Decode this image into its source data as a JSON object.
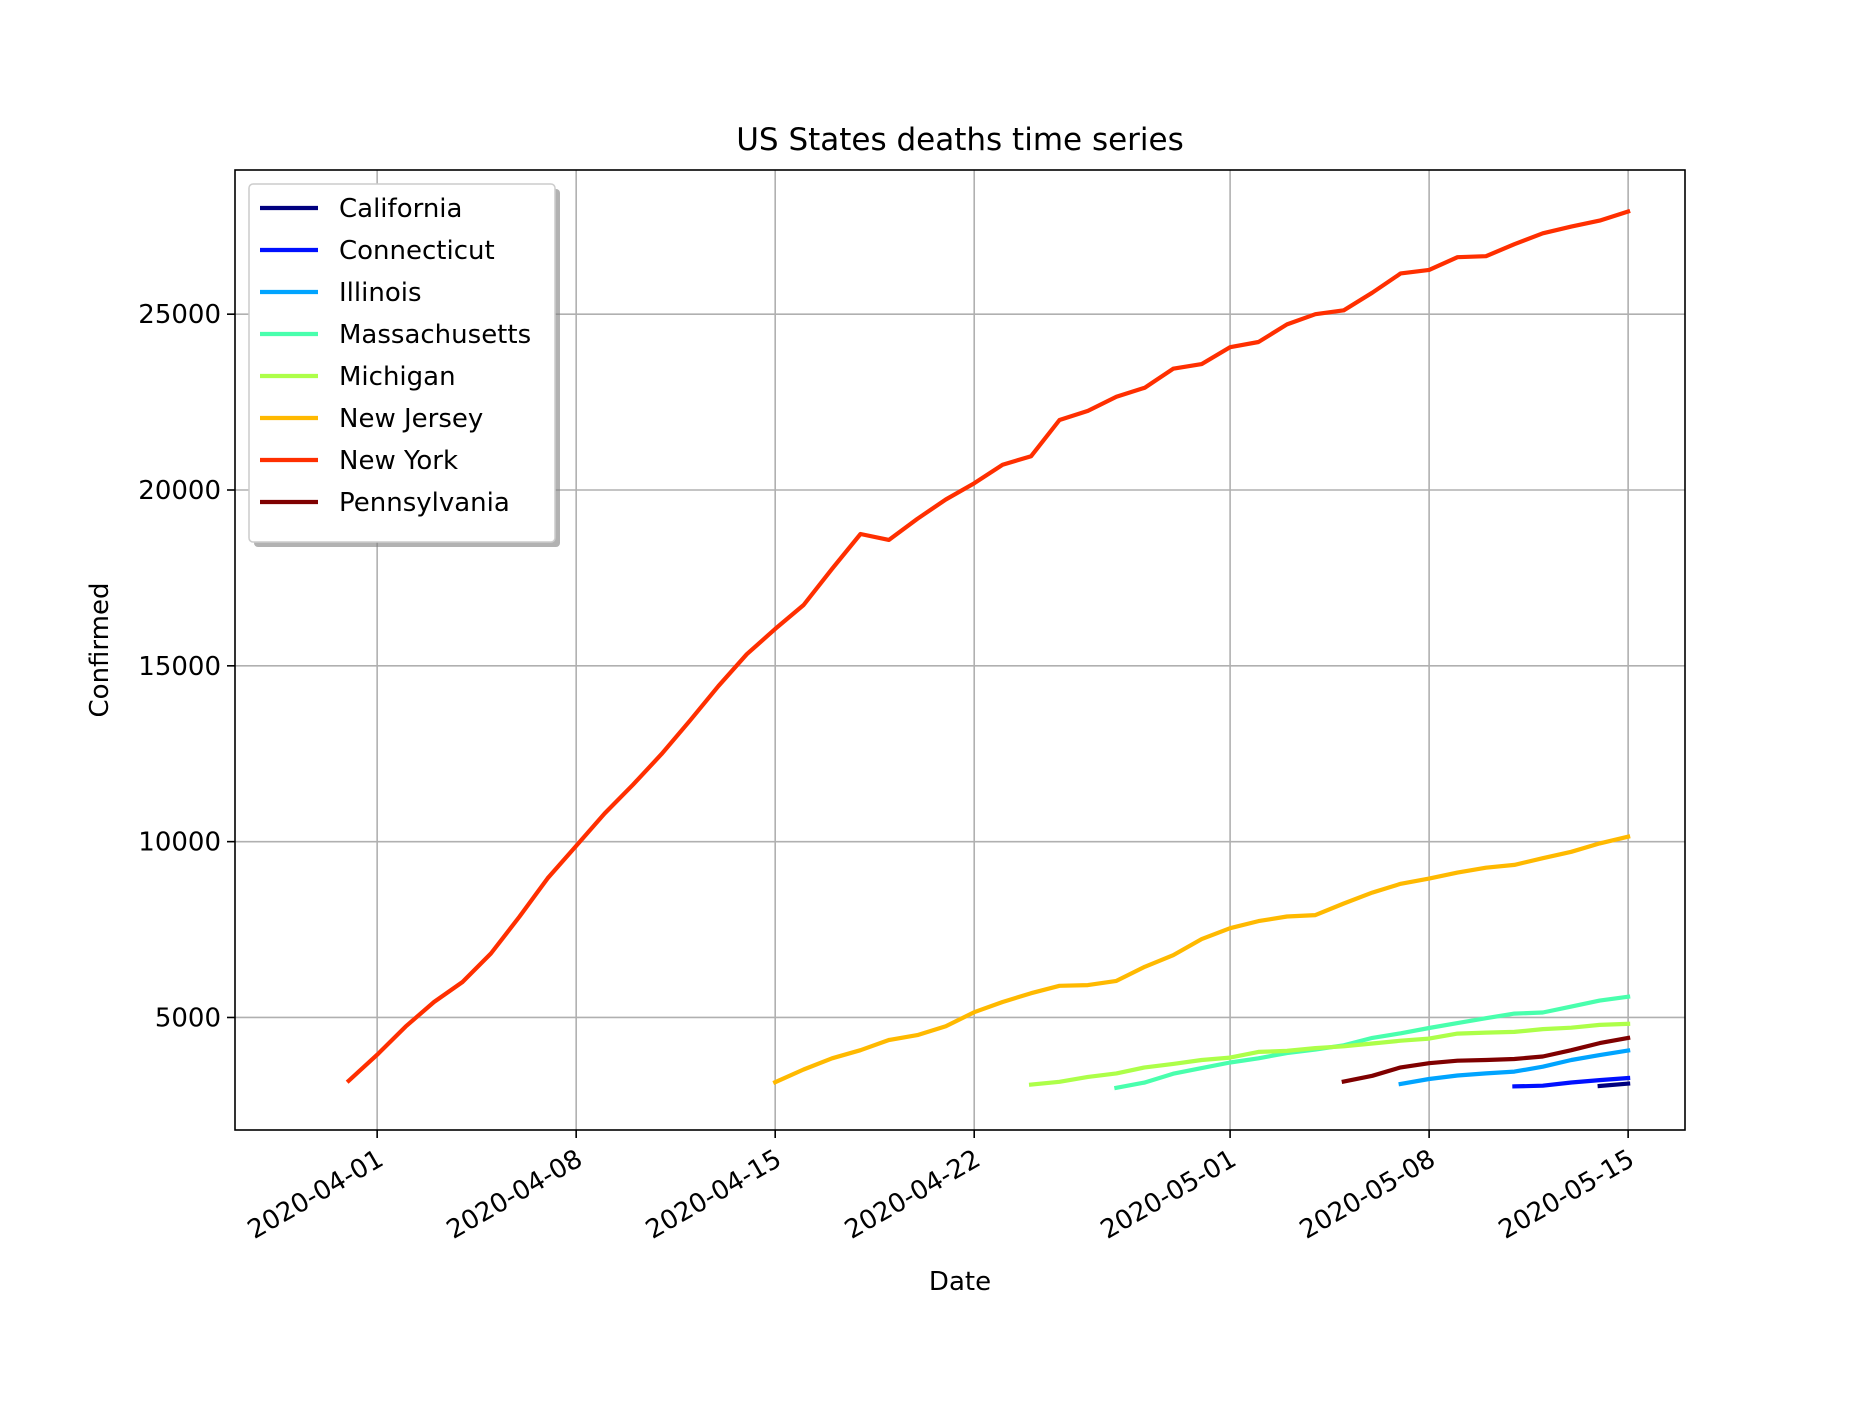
{
  "chart_data": {
    "type": "line",
    "title": "US States deaths time series",
    "xlabel": "Date",
    "ylabel": "Confirmed",
    "xlim": [
      "2020-03-27",
      "2020-05-17"
    ],
    "ylim": [
      1800,
      29100
    ],
    "grid": true,
    "legend_position": "top-left",
    "x_ticks": [
      "2020-04-01",
      "2020-04-08",
      "2020-04-15",
      "2020-04-22",
      "2020-05-01",
      "2020-05-08",
      "2020-05-15"
    ],
    "y_ticks": [
      5000,
      10000,
      15000,
      20000,
      25000
    ],
    "series": [
      {
        "name": "California",
        "color": "#00007f",
        "x": [
          "2020-05-14",
          "2020-05-15"
        ],
        "y": [
          3050,
          3120
        ]
      },
      {
        "name": "Connecticut",
        "color": "#0010ff",
        "x": [
          "2020-05-11",
          "2020-05-12",
          "2020-05-13",
          "2020-05-14",
          "2020-05-15"
        ],
        "y": [
          3040,
          3060,
          3150,
          3220,
          3280
        ]
      },
      {
        "name": "Illinois",
        "color": "#00a4ff",
        "x": [
          "2020-05-07",
          "2020-05-08",
          "2020-05-09",
          "2020-05-10",
          "2020-05-11",
          "2020-05-12",
          "2020-05-13",
          "2020-05-14",
          "2020-05-15"
        ],
        "y": [
          3110,
          3250,
          3350,
          3410,
          3460,
          3600,
          3790,
          3930,
          4060
        ]
      },
      {
        "name": "Massachusetts",
        "color": "#49ffad",
        "x": [
          "2020-04-27",
          "2020-04-28",
          "2020-04-29",
          "2020-04-30",
          "2020-05-01",
          "2020-05-02",
          "2020-05-03",
          "2020-05-04",
          "2020-05-05",
          "2020-05-06",
          "2020-05-07",
          "2020-05-08",
          "2020-05-09",
          "2020-05-10",
          "2020-05-11",
          "2020-05-12",
          "2020-05-13",
          "2020-05-14",
          "2020-05-15"
        ],
        "y": [
          3000,
          3150,
          3400,
          3560,
          3720,
          3840,
          3990,
          4090,
          4210,
          4420,
          4550,
          4700,
          4840,
          4980,
          5110,
          5140,
          5310,
          5480,
          5590
        ]
      },
      {
        "name": "Michigan",
        "color": "#adff49",
        "x": [
          "2020-04-24",
          "2020-04-25",
          "2020-04-26",
          "2020-04-27",
          "2020-04-28",
          "2020-04-29",
          "2020-04-30",
          "2020-05-01",
          "2020-05-02",
          "2020-05-03",
          "2020-05-04",
          "2020-05-05",
          "2020-05-06",
          "2020-05-07",
          "2020-05-08",
          "2020-05-09",
          "2020-05-10",
          "2020-05-11",
          "2020-05-12",
          "2020-05-13",
          "2020-05-14",
          "2020-05-15"
        ],
        "y": [
          3090,
          3170,
          3310,
          3410,
          3580,
          3680,
          3790,
          3860,
          4020,
          4050,
          4130,
          4180,
          4260,
          4340,
          4400,
          4540,
          4570,
          4590,
          4670,
          4710,
          4790,
          4820
        ]
      },
      {
        "name": "New Jersey",
        "color": "#ffb900",
        "x": [
          "2020-04-15",
          "2020-04-16",
          "2020-04-17",
          "2020-04-18",
          "2020-04-19",
          "2020-04-20",
          "2020-04-21",
          "2020-04-22",
          "2020-04-23",
          "2020-04-24",
          "2020-04-25",
          "2020-04-26",
          "2020-04-27",
          "2020-04-28",
          "2020-04-29",
          "2020-04-30",
          "2020-05-01",
          "2020-05-02",
          "2020-05-03",
          "2020-05-04",
          "2020-05-05",
          "2020-05-06",
          "2020-05-07",
          "2020-05-08",
          "2020-05-09",
          "2020-05-10",
          "2020-05-11",
          "2020-05-12",
          "2020-05-13",
          "2020-05-14",
          "2020-05-15"
        ],
        "y": [
          3160,
          3520,
          3840,
          4070,
          4360,
          4500,
          4750,
          5150,
          5440,
          5690,
          5900,
          5920,
          6040,
          6440,
          6770,
          7230,
          7540,
          7740,
          7870,
          7910,
          8240,
          8550,
          8800,
          8950,
          9120,
          9260,
          9340,
          9530,
          9710,
          9950,
          10140
        ]
      },
      {
        "name": "New York",
        "color": "#ff2f00",
        "x": [
          "2020-03-31",
          "2020-04-01",
          "2020-04-02",
          "2020-04-03",
          "2020-04-04",
          "2020-04-05",
          "2020-04-06",
          "2020-04-07",
          "2020-04-08",
          "2020-04-09",
          "2020-04-10",
          "2020-04-11",
          "2020-04-12",
          "2020-04-13",
          "2020-04-14",
          "2020-04-15",
          "2020-04-16",
          "2020-04-17",
          "2020-04-18",
          "2020-04-19",
          "2020-04-20",
          "2020-04-21",
          "2020-04-22",
          "2020-04-23",
          "2020-04-24",
          "2020-04-25",
          "2020-04-26",
          "2020-04-27",
          "2020-04-28",
          "2020-04-29",
          "2020-04-30",
          "2020-05-01",
          "2020-05-02",
          "2020-05-03",
          "2020-05-04",
          "2020-05-05",
          "2020-05-06",
          "2020-05-07",
          "2020-05-08",
          "2020-05-09",
          "2020-05-10",
          "2020-05-11",
          "2020-05-12",
          "2020-05-13",
          "2020-05-14",
          "2020-05-15"
        ],
        "y": [
          3200,
          3940,
          4740,
          5440,
          6010,
          6820,
          7860,
          8960,
          9880,
          10800,
          11620,
          12490,
          13440,
          14420,
          15330,
          16050,
          16730,
          17760,
          18750,
          18580,
          19180,
          19730,
          20190,
          20720,
          20960,
          21990,
          22250,
          22650,
          22910,
          23450,
          23580,
          24060,
          24210,
          24710,
          25000,
          25110,
          25610,
          26160,
          26260,
          26620,
          26650,
          26990,
          27300,
          27490,
          27660,
          27920
        ]
      },
      {
        "name": "Pennsylvania",
        "color": "#7f0000",
        "x": [
          "2020-05-05",
          "2020-05-06",
          "2020-05-07",
          "2020-05-08",
          "2020-05-09",
          "2020-05-10",
          "2020-05-11",
          "2020-05-12",
          "2020-05-13",
          "2020-05-14",
          "2020-05-15"
        ],
        "y": [
          3180,
          3340,
          3580,
          3700,
          3770,
          3790,
          3820,
          3890,
          4070,
          4270,
          4420
        ]
      }
    ]
  }
}
